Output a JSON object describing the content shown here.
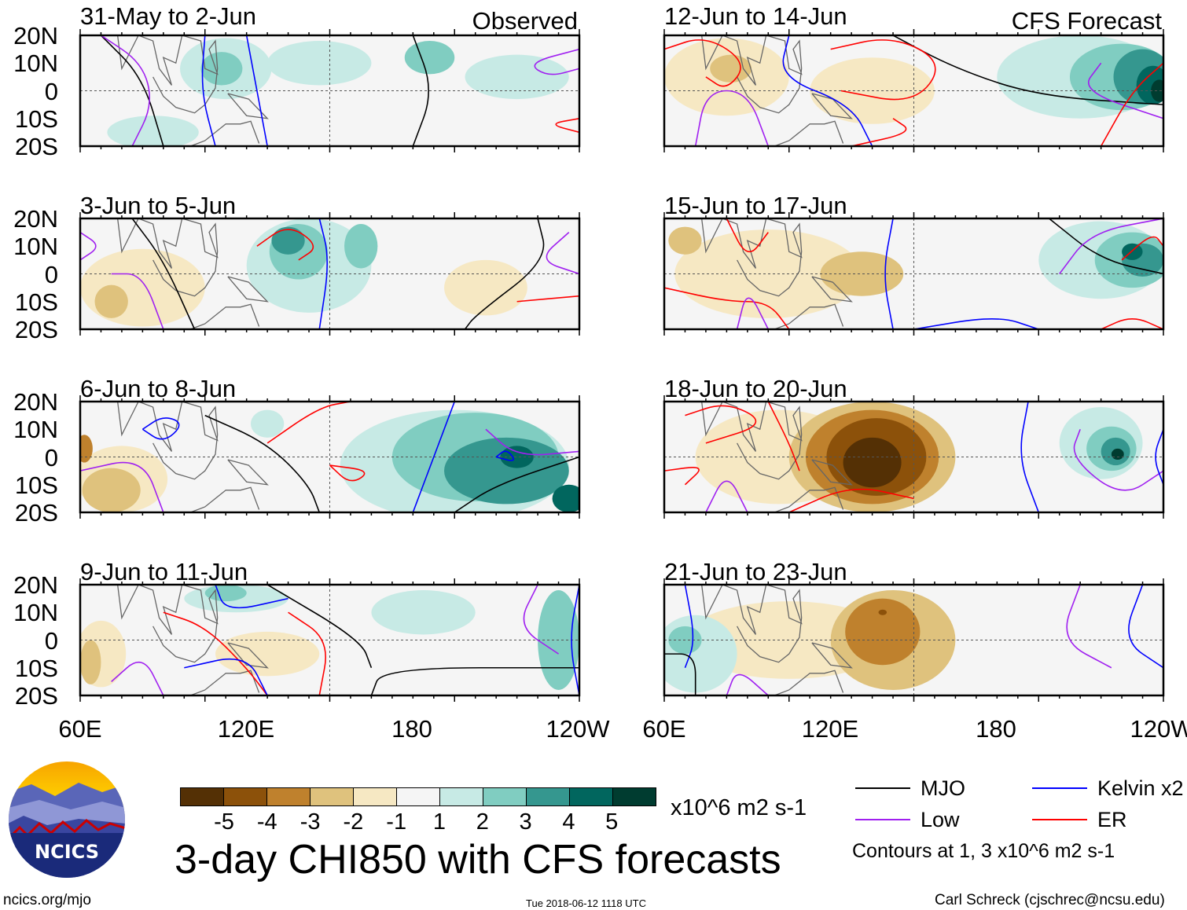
{
  "chart_data": {
    "type": "heatmap",
    "title": "3-day CHI850 with CFS forecasts",
    "units": "x10^6 m2 s-1",
    "column_headers": [
      "Observed",
      "CFS Forecast"
    ],
    "x_ticks": [
      "60E",
      "120E",
      "180",
      "120W"
    ],
    "y_ticks": [
      "20N",
      "10N",
      "0",
      "10S",
      "20S"
    ],
    "xlim_deg_east": [
      60,
      240
    ],
    "ylim_deg": [
      -20,
      20
    ],
    "panels": [
      {
        "title": "31-May to 2-Jun",
        "column": "Observed"
      },
      {
        "title": "3-Jun to 5-Jun",
        "column": "Observed"
      },
      {
        "title": "6-Jun to 8-Jun",
        "column": "Observed"
      },
      {
        "title": "9-Jun to 11-Jun",
        "column": "Observed"
      },
      {
        "title": "12-Jun to 14-Jun",
        "column": "CFS Forecast"
      },
      {
        "title": "15-Jun to 17-Jun",
        "column": "CFS Forecast"
      },
      {
        "title": "18-Jun to 20-Jun",
        "column": "CFS Forecast"
      },
      {
        "title": "21-Jun to 23-Jun",
        "column": "CFS Forecast"
      }
    ],
    "colorbar": {
      "labels": [
        "-5",
        "-4",
        "-3",
        "-2",
        "-1",
        "1",
        "2",
        "3",
        "4",
        "5"
      ],
      "colors": [
        "#543005",
        "#8c510a",
        "#bf812d",
        "#dfc27d",
        "#f6e8c3",
        "#f5f5f5",
        "#c7eae5",
        "#80cdc1",
        "#35978f",
        "#01665e",
        "#003c30"
      ]
    },
    "legend": {
      "items": [
        {
          "label": "MJO",
          "color": "#000000"
        },
        {
          "label": "Kelvin x2",
          "color": "#0000ff"
        },
        {
          "label": "Low",
          "color": "#a020f0"
        },
        {
          "label": "ER",
          "color": "#ff0000"
        }
      ],
      "note": "Contours at 1, 3 x10^6 m2 s-1"
    }
  },
  "footer": {
    "logo_text": "NCICS",
    "url": "ncics.org/mjo",
    "timestamp": "Tue 2018-06-12 1118 UTC",
    "credit": "Carl Schreck (cjschrec@ncsu.edu)"
  }
}
